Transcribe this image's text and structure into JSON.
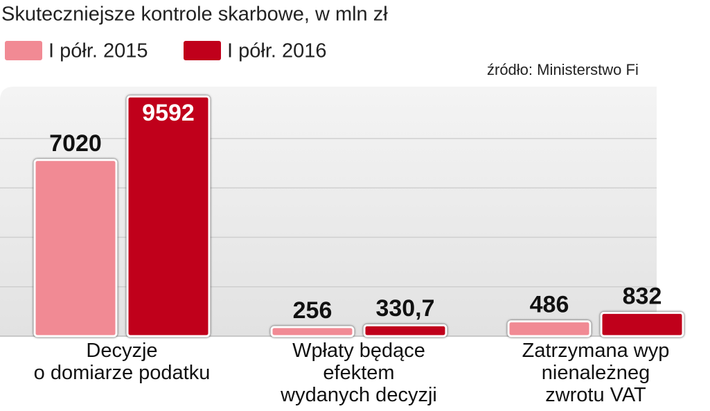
{
  "chart_data": {
    "type": "bar",
    "title": "Skuteczniejsze kontrole skarbowe, w mln zł",
    "source": "źródło: Ministerstwo Fi",
    "categories": [
      "Decyzje\no domiarze podatku",
      "Wpłaty będące\nefektem\nwydanych decyzji",
      "Zatrzymana wyp\nnienależneg\nzwrotu VAT"
    ],
    "series": [
      {
        "name": "I półr. 2015",
        "color": "#f18a94",
        "values": [
          7020,
          256,
          486
        ]
      },
      {
        "name": "I półr. 2016",
        "color": "#c0001b",
        "values": [
          9592,
          330.7,
          832
        ],
        "value_labels": [
          "9592",
          "330,7",
          "832"
        ]
      }
    ],
    "ylim": [
      0,
      10100
    ],
    "yticks": [
      0,
      2000,
      4000,
      6000,
      8000
    ],
    "grid": true
  }
}
